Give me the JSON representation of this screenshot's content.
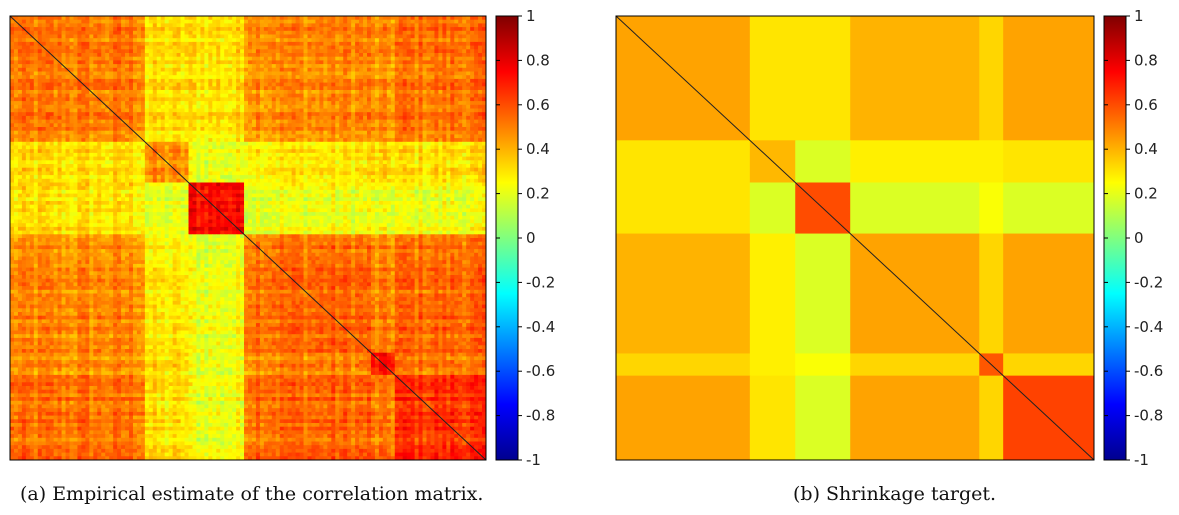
{
  "chart_data": [
    {
      "type": "heatmap",
      "caption": "(a) Empirical estimate of the correlation matrix.",
      "colorbar": {
        "ticks": [
          "1",
          "0.8",
          "0.6",
          "0.4",
          "0.2",
          "0",
          "-0.2",
          "-0.4",
          "-0.6",
          "-0.8",
          "-1"
        ],
        "range": [
          -1,
          1
        ],
        "colormap": "jet"
      },
      "grid": false,
      "diagonal_value": 1,
      "blocks": {
        "boundaries": [
          0,
          0.28,
          0.375,
          0.49,
          0.76,
          0.81,
          1.0
        ],
        "values": [
          [
            0.5,
            0.3,
            0.3,
            0.48,
            0.45,
            0.52
          ],
          [
            0.3,
            0.45,
            0.2,
            0.28,
            0.3,
            0.3
          ],
          [
            0.3,
            0.2,
            0.75,
            0.22,
            0.2,
            0.22
          ],
          [
            0.48,
            0.28,
            0.22,
            0.55,
            0.48,
            0.55
          ],
          [
            0.45,
            0.3,
            0.2,
            0.48,
            0.7,
            0.5
          ],
          [
            0.52,
            0.3,
            0.22,
            0.55,
            0.5,
            0.65
          ]
        ]
      },
      "noise": 0.12
    },
    {
      "type": "heatmap",
      "caption": "(b) Shrinkage target.",
      "colorbar": {
        "ticks": [
          "1",
          "0.8",
          "0.6",
          "0.4",
          "0.2",
          "0",
          "-0.2",
          "-0.4",
          "-0.6",
          "-0.8",
          "-1"
        ],
        "range": [
          -1,
          1
        ],
        "colormap": "jet"
      },
      "grid": false,
      "diagonal_value": 1,
      "blocks": {
        "boundaries": [
          0,
          0.28,
          0.375,
          0.49,
          0.76,
          0.81,
          1.0
        ],
        "values": [
          [
            0.43,
            0.3,
            0.3,
            0.4,
            0.33,
            0.43
          ],
          [
            0.3,
            0.39,
            0.18,
            0.28,
            0.28,
            0.3
          ],
          [
            0.3,
            0.18,
            0.6,
            0.18,
            0.24,
            0.18
          ],
          [
            0.4,
            0.28,
            0.18,
            0.43,
            0.33,
            0.43
          ],
          [
            0.33,
            0.28,
            0.24,
            0.33,
            0.58,
            0.33
          ],
          [
            0.43,
            0.3,
            0.18,
            0.43,
            0.33,
            0.62
          ]
        ]
      },
      "noise": 0
    }
  ]
}
